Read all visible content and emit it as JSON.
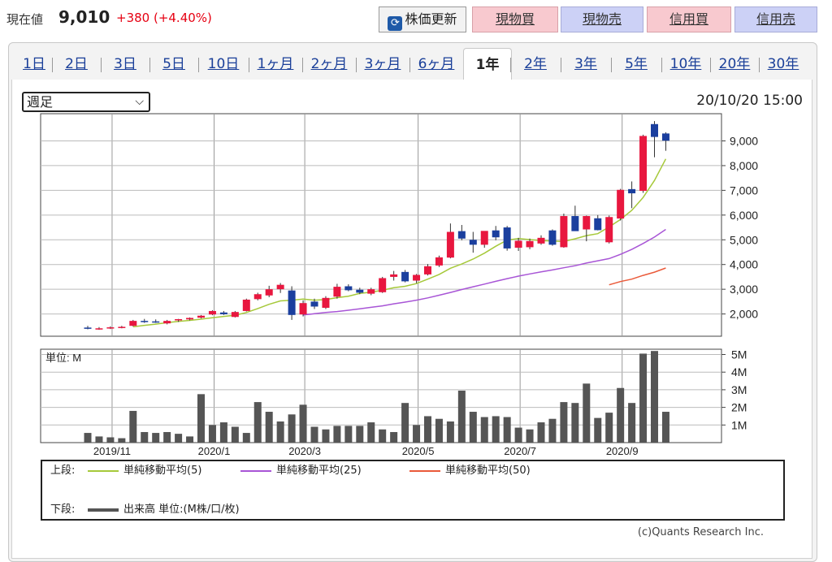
{
  "header": {
    "price_label": "現在値",
    "price_value": "9,010",
    "price_change": "+380 (+4.40%)",
    "update_button": "株価更新",
    "buttons": [
      "現物買",
      "現物売",
      "信用買",
      "信用売"
    ]
  },
  "tabs": [
    "1日",
    "2日",
    "3日",
    "5日",
    "10日",
    "1ヶ月",
    "2ヶ月",
    "3ヶ月",
    "6ヶ月",
    "1年",
    "2年",
    "3年",
    "5年",
    "10年",
    "20年",
    "30年"
  ],
  "active_tab": "1年",
  "period_select": "週足",
  "datetime": "20/10/20 15:00",
  "legend": {
    "upper_label": "上段:",
    "ma5": "単純移動平均(5)",
    "ma25": "単純移動平均(25)",
    "ma50": "単純移動平均(50)",
    "lower_label": "下段:",
    "volume": "出来高 単位:(M株/口/枚)"
  },
  "copyright": "(c)Quants Research Inc.",
  "colors": {
    "up": "#e8173f",
    "down": "#1b3f9e",
    "ma5": "#a6c93a",
    "ma25": "#a855d6",
    "ma50": "#ea5a3a",
    "volume": "#555555"
  },
  "chart_data": {
    "type": "candlestick",
    "unit_label": "単位: M",
    "y_ticks": [
      "9,000",
      "8,000",
      "7,000",
      "6,000",
      "5,000",
      "4,000",
      "3,000",
      "2,000"
    ],
    "y_tick_values": [
      9000,
      8000,
      7000,
      6000,
      5000,
      4000,
      3000,
      2000
    ],
    "volume_ticks": [
      "5M",
      "4M",
      "3M",
      "2M",
      "1M"
    ],
    "volume_tick_values": [
      5,
      4,
      3,
      2,
      1
    ],
    "x_labels": [
      "2019/11",
      "2020/1",
      "2020/3",
      "2020/5",
      "2020/7",
      "2020/9"
    ],
    "x_label_weeks": [
      1,
      10,
      18,
      28,
      37,
      46
    ],
    "price_range": [
      1100,
      10100
    ],
    "volume_range": [
      0,
      5.3
    ],
    "candles": [
      {
        "o": 1450,
        "h": 1520,
        "l": 1380,
        "c": 1400
      },
      {
        "o": 1400,
        "h": 1470,
        "l": 1360,
        "c": 1420
      },
      {
        "o": 1440,
        "h": 1500,
        "l": 1390,
        "c": 1460
      },
      {
        "o": 1460,
        "h": 1520,
        "l": 1420,
        "c": 1480
      },
      {
        "o": 1520,
        "h": 1760,
        "l": 1500,
        "c": 1720
      },
      {
        "o": 1720,
        "h": 1800,
        "l": 1640,
        "c": 1680
      },
      {
        "o": 1700,
        "h": 1780,
        "l": 1640,
        "c": 1660
      },
      {
        "o": 1620,
        "h": 1760,
        "l": 1580,
        "c": 1720
      },
      {
        "o": 1740,
        "h": 1800,
        "l": 1680,
        "c": 1790
      },
      {
        "o": 1780,
        "h": 1860,
        "l": 1740,
        "c": 1840
      },
      {
        "o": 1850,
        "h": 1960,
        "l": 1820,
        "c": 1930
      },
      {
        "o": 1980,
        "h": 2150,
        "l": 1950,
        "c": 2120
      },
      {
        "o": 2060,
        "h": 2120,
        "l": 1960,
        "c": 1990
      },
      {
        "o": 1880,
        "h": 2120,
        "l": 1860,
        "c": 2080
      },
      {
        "o": 2120,
        "h": 2620,
        "l": 2100,
        "c": 2580
      },
      {
        "o": 2600,
        "h": 2860,
        "l": 2550,
        "c": 2800
      },
      {
        "o": 2750,
        "h": 3140,
        "l": 2680,
        "c": 3000
      },
      {
        "o": 3000,
        "h": 3250,
        "l": 2850,
        "c": 3180
      },
      {
        "o": 2950,
        "h": 3120,
        "l": 1760,
        "c": 1960
      },
      {
        "o": 1980,
        "h": 2550,
        "l": 1900,
        "c": 2440
      },
      {
        "o": 2500,
        "h": 2620,
        "l": 2200,
        "c": 2300
      },
      {
        "o": 2250,
        "h": 2720,
        "l": 2200,
        "c": 2650
      },
      {
        "o": 2700,
        "h": 3220,
        "l": 2620,
        "c": 3100
      },
      {
        "o": 3120,
        "h": 3200,
        "l": 2920,
        "c": 2960
      },
      {
        "o": 2980,
        "h": 3060,
        "l": 2800,
        "c": 2860
      },
      {
        "o": 2820,
        "h": 3060,
        "l": 2760,
        "c": 3000
      },
      {
        "o": 2880,
        "h": 3500,
        "l": 2850,
        "c": 3450
      },
      {
        "o": 3500,
        "h": 3740,
        "l": 3350,
        "c": 3600
      },
      {
        "o": 3700,
        "h": 3780,
        "l": 3280,
        "c": 3320
      },
      {
        "o": 3350,
        "h": 3620,
        "l": 3250,
        "c": 3580
      },
      {
        "o": 3600,
        "h": 4020,
        "l": 3560,
        "c": 3930
      },
      {
        "o": 3960,
        "h": 4360,
        "l": 3900,
        "c": 4290
      },
      {
        "o": 4280,
        "h": 5660,
        "l": 4250,
        "c": 5320
      },
      {
        "o": 5350,
        "h": 5600,
        "l": 4980,
        "c": 5050
      },
      {
        "o": 5000,
        "h": 5320,
        "l": 4480,
        "c": 4800
      },
      {
        "o": 4800,
        "h": 5350,
        "l": 4680,
        "c": 5360
      },
      {
        "o": 5380,
        "h": 5560,
        "l": 4980,
        "c": 5100
      },
      {
        "o": 5500,
        "h": 5560,
        "l": 4560,
        "c": 4650
      },
      {
        "o": 4680,
        "h": 5080,
        "l": 4550,
        "c": 4960
      },
      {
        "o": 4700,
        "h": 5050,
        "l": 4620,
        "c": 4950
      },
      {
        "o": 4850,
        "h": 5180,
        "l": 4800,
        "c": 5080
      },
      {
        "o": 5380,
        "h": 5420,
        "l": 4760,
        "c": 4800
      },
      {
        "o": 4700,
        "h": 6060,
        "l": 4680,
        "c": 5960
      },
      {
        "o": 5960,
        "h": 6380,
        "l": 5380,
        "c": 5350
      },
      {
        "o": 5420,
        "h": 5980,
        "l": 4940,
        "c": 5960
      },
      {
        "o": 5870,
        "h": 6000,
        "l": 5380,
        "c": 5390
      },
      {
        "o": 4900,
        "h": 5980,
        "l": 4850,
        "c": 5920
      },
      {
        "o": 5860,
        "h": 7060,
        "l": 5780,
        "c": 7020
      },
      {
        "o": 7050,
        "h": 7360,
        "l": 6280,
        "c": 6880
      },
      {
        "o": 6980,
        "h": 9250,
        "l": 6900,
        "c": 9200
      },
      {
        "o": 9680,
        "h": 9800,
        "l": 8340,
        "c": 9160
      },
      {
        "o": 9300,
        "h": 9350,
        "l": 8600,
        "c": 9010
      }
    ],
    "ma5": [
      null,
      null,
      null,
      null,
      1480,
      1540,
      1590,
      1650,
      1700,
      1740,
      1790,
      1850,
      1900,
      1950,
      2060,
      2220,
      2390,
      2530,
      2560,
      2600,
      2560,
      2580,
      2660,
      2720,
      2830,
      2880,
      2960,
      3060,
      3120,
      3230,
      3410,
      3600,
      3850,
      4020,
      4220,
      4460,
      4740,
      4990,
      5050,
      5010,
      4970,
      4950,
      4930,
      5040,
      5170,
      5250,
      5520,
      5820,
      6190,
      6710,
      7400,
      8270
    ],
    "ma25": [
      null,
      null,
      null,
      null,
      null,
      null,
      null,
      null,
      null,
      null,
      null,
      null,
      null,
      null,
      null,
      null,
      null,
      null,
      null,
      1960,
      2010,
      2060,
      2100,
      2150,
      2210,
      2270,
      2330,
      2410,
      2480,
      2560,
      2650,
      2760,
      2870,
      2990,
      3100,
      3210,
      3320,
      3430,
      3530,
      3620,
      3700,
      3780,
      3870,
      3950,
      4060,
      4150,
      4240,
      4410,
      4610,
      4850,
      5110,
      5420
    ],
    "ma50": [
      null,
      null,
      null,
      null,
      null,
      null,
      null,
      null,
      null,
      null,
      null,
      null,
      null,
      null,
      null,
      null,
      null,
      null,
      null,
      null,
      null,
      null,
      null,
      null,
      null,
      null,
      null,
      null,
      null,
      null,
      null,
      null,
      null,
      null,
      null,
      null,
      null,
      null,
      null,
      null,
      null,
      null,
      null,
      null,
      null,
      null,
      3180,
      3310,
      3410,
      3560,
      3690,
      3860
    ],
    "volume": [
      0.55,
      0.35,
      0.3,
      0.25,
      1.8,
      0.6,
      0.55,
      0.6,
      0.5,
      0.35,
      2.75,
      1.0,
      1.15,
      0.9,
      0.55,
      2.3,
      1.75,
      1.2,
      1.6,
      2.15,
      0.9,
      0.75,
      0.95,
      0.95,
      0.95,
      1.15,
      0.75,
      0.6,
      2.25,
      1.0,
      1.5,
      1.35,
      1.2,
      2.95,
      1.75,
      1.45,
      1.5,
      1.45,
      0.85,
      0.75,
      1.15,
      1.35,
      2.3,
      2.25,
      3.35,
      1.4,
      1.7,
      3.1,
      2.25,
      5.05,
      5.2,
      1.75
    ]
  }
}
